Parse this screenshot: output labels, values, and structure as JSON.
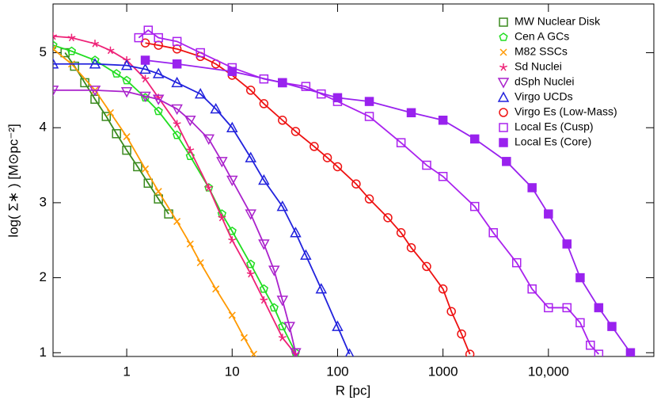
{
  "chart_data": {
    "type": "line",
    "xlabel": "R [pc]",
    "ylabel": "log( Σ∗ )  [M⊙pc⁻²]",
    "xscale": "log",
    "grid": false,
    "legend": "upper right",
    "xlim": [
      0.2,
      100000
    ],
    "ylim": [
      0.95,
      5.65
    ],
    "xticks": [
      1,
      10,
      100,
      1000,
      {
        "value": 10000,
        "label": "10,000"
      }
    ],
    "yticks": [
      1,
      2,
      3,
      4,
      5
    ],
    "series": [
      {
        "name": "MW Nuclear Disk",
        "color": "#3a8a1e",
        "marker": "square-open",
        "x": [
          0.26,
          0.32,
          0.4,
          0.5,
          0.64,
          0.8,
          1.0,
          1.27,
          1.6,
          2.0,
          2.5
        ],
        "values": [
          5.0,
          4.82,
          4.6,
          4.38,
          4.15,
          3.92,
          3.7,
          3.48,
          3.26,
          3.05,
          2.85
        ]
      },
      {
        "name": "Cen A GCs",
        "color": "#22dd22",
        "marker": "pentagon-open",
        "x": [
          0.2,
          0.3,
          0.5,
          0.8,
          1.0,
          1.5,
          2,
          3,
          4,
          6,
          8,
          10,
          15,
          20,
          25,
          30,
          40
        ],
        "values": [
          5.1,
          5.02,
          4.9,
          4.72,
          4.63,
          4.4,
          4.22,
          3.9,
          3.62,
          3.2,
          2.85,
          2.62,
          2.18,
          1.85,
          1.6,
          1.35,
          1.0
        ]
      },
      {
        "name": "M82 SSCs",
        "color": "#ff9900",
        "marker": "x",
        "x": [
          0.2,
          0.3,
          0.5,
          0.7,
          1,
          1.5,
          2,
          3,
          4,
          5,
          7,
          10,
          13,
          16
        ],
        "values": [
          5.05,
          4.85,
          4.5,
          4.2,
          3.88,
          3.45,
          3.15,
          2.75,
          2.45,
          2.2,
          1.85,
          1.5,
          1.2,
          0.98
        ]
      },
      {
        "name": "Sd Nuclei",
        "color": "#ee2277",
        "marker": "star",
        "x": [
          0.2,
          0.3,
          0.5,
          0.7,
          1,
          1.5,
          2,
          3,
          4,
          6,
          8,
          10,
          15,
          20,
          30,
          40
        ],
        "values": [
          5.22,
          5.2,
          5.12,
          5.03,
          4.9,
          4.65,
          4.4,
          4.05,
          3.7,
          3.2,
          2.8,
          2.5,
          2.05,
          1.7,
          1.2,
          0.98
        ]
      },
      {
        "name": "dSph Nuclei",
        "color": "#aa22cc",
        "marker": "triangle-down-open",
        "x": [
          0.2,
          0.5,
          1,
          1.5,
          2,
          3,
          4,
          6,
          8,
          10,
          15,
          20,
          25,
          30,
          35,
          40
        ],
        "values": [
          4.5,
          4.5,
          4.48,
          4.42,
          4.38,
          4.25,
          4.1,
          3.85,
          3.55,
          3.3,
          2.85,
          2.45,
          2.1,
          1.7,
          1.35,
          1.0
        ]
      },
      {
        "name": "Virgo UCDs",
        "color": "#2222dd",
        "marker": "triangle-open",
        "x": [
          0.2,
          0.5,
          1,
          1.5,
          2,
          3,
          5,
          7,
          10,
          15,
          20,
          30,
          40,
          50,
          70,
          100,
          130
        ],
        "values": [
          4.85,
          4.85,
          4.83,
          4.78,
          4.72,
          4.6,
          4.45,
          4.25,
          4.0,
          3.6,
          3.3,
          2.95,
          2.6,
          2.3,
          1.85,
          1.35,
          0.98
        ]
      },
      {
        "name": "Virgo Es (Low-Mass)",
        "color": "#ee1111",
        "marker": "circle-open",
        "x": [
          1.5,
          2,
          3,
          5,
          7,
          10,
          15,
          20,
          30,
          40,
          60,
          80,
          100,
          150,
          200,
          300,
          400,
          500,
          700,
          1000,
          1200,
          1500,
          1800
        ],
        "values": [
          5.13,
          5.1,
          5.05,
          4.95,
          4.85,
          4.7,
          4.5,
          4.32,
          4.1,
          3.95,
          3.75,
          3.6,
          3.48,
          3.25,
          3.05,
          2.8,
          2.6,
          2.4,
          2.15,
          1.85,
          1.55,
          1.25,
          0.98
        ]
      },
      {
        "name": "Local Es (Cusp)",
        "color": "#aa22ee",
        "marker": "square-open",
        "x": [
          1.3,
          1.6,
          2,
          3,
          5,
          10,
          20,
          30,
          50,
          70,
          100,
          200,
          400,
          700,
          1000,
          2000,
          3000,
          5000,
          7000,
          10000,
          15000,
          20000,
          25000,
          30000
        ],
        "values": [
          5.2,
          5.3,
          5.2,
          5.15,
          5.0,
          4.8,
          4.65,
          4.6,
          4.55,
          4.45,
          4.35,
          4.15,
          3.8,
          3.5,
          3.35,
          2.95,
          2.6,
          2.2,
          1.85,
          1.6,
          1.6,
          1.4,
          1.1,
          0.98
        ]
      },
      {
        "name": "Local Es (Core)",
        "color": "#9922ee",
        "marker": "square-filled",
        "x": [
          1.5,
          3,
          10,
          30,
          100,
          200,
          500,
          1000,
          2000,
          4000,
          7000,
          10000,
          15000,
          20000,
          30000,
          40000,
          60000
        ],
        "values": [
          4.9,
          4.85,
          4.75,
          4.6,
          4.4,
          4.35,
          4.2,
          4.1,
          3.85,
          3.55,
          3.2,
          2.85,
          2.45,
          2.0,
          1.6,
          1.35,
          1.0
        ]
      }
    ]
  }
}
